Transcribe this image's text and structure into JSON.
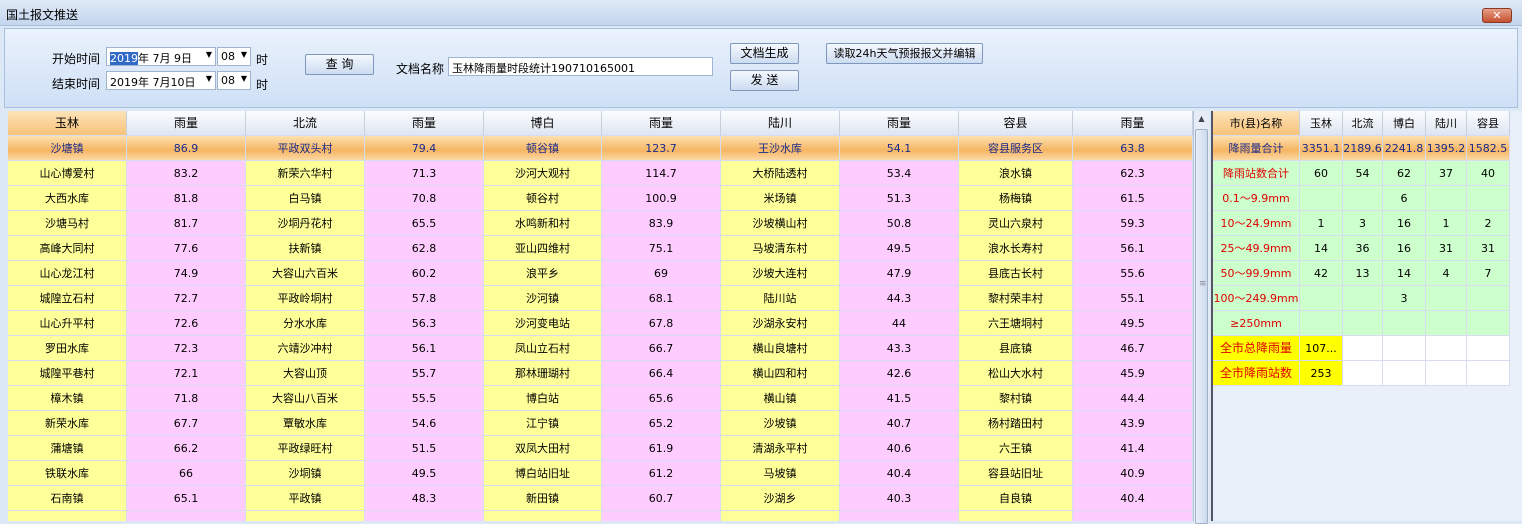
{
  "window": {
    "title": "国土报文推送",
    "close_icon": "close-icon"
  },
  "toolbar": {
    "start_label": "开始时间",
    "start_year_sel": "2019",
    "start_date_rest": "年 7月 9日",
    "start_hour": "08",
    "hour_unit": "时",
    "end_label": "结束时间",
    "end_date": "2019年 7月10日",
    "end_hour": "08",
    "query": "查 询",
    "doc_name_label": "文档名称",
    "doc_name_value": "玉林降雨量时段统计190710165001",
    "generate": "文档生成",
    "send": "发 送",
    "read_forecast": "读取24h天气预报报文并编辑"
  },
  "grid": {
    "headers": [
      "玉林",
      "雨量",
      "北流",
      "雨量",
      "博白",
      "雨量",
      "陆川",
      "雨量",
      "容县",
      "雨量"
    ],
    "rows": [
      [
        "沙塘镇",
        "86.9",
        "平政双头村",
        "79.4",
        "顿谷镇",
        "123.7",
        "王沙水库",
        "54.1",
        "容县服务区",
        "63.8"
      ],
      [
        "山心博爱村",
        "83.2",
        "新荣六华村",
        "71.3",
        "沙河大观村",
        "114.7",
        "大桥陆透村",
        "53.4",
        "浪水镇",
        "62.3"
      ],
      [
        "大西水库",
        "81.8",
        "白马镇",
        "70.8",
        "顿谷村",
        "100.9",
        "米场镇",
        "51.3",
        "杨梅镇",
        "61.5"
      ],
      [
        "沙塘马村",
        "81.7",
        "沙垌丹花村",
        "65.5",
        "水鸣新和村",
        "83.9",
        "沙坡横山村",
        "50.8",
        "灵山六泉村",
        "59.3"
      ],
      [
        "高峰大同村",
        "77.6",
        "扶新镇",
        "62.8",
        "亚山四维村",
        "75.1",
        "马坡清东村",
        "49.5",
        "浪水长寿村",
        "56.1"
      ],
      [
        "山心龙江村",
        "74.9",
        "大容山六百米",
        "60.2",
        "浪平乡",
        "69",
        "沙坡大连村",
        "47.9",
        "县底古长村",
        "55.6"
      ],
      [
        "城隍立石村",
        "72.7",
        "平政岭垌村",
        "57.8",
        "沙河镇",
        "68.1",
        "陆川站",
        "44.3",
        "黎村荣丰村",
        "55.1"
      ],
      [
        "山心升平村",
        "72.6",
        "分水水库",
        "56.3",
        "沙河变电站",
        "67.8",
        "沙湖永安村",
        "44",
        "六王塘垌村",
        "49.5"
      ],
      [
        "罗田水库",
        "72.3",
        "六靖沙冲村",
        "56.1",
        "凤山立石村",
        "66.7",
        "横山良塘村",
        "43.3",
        "县底镇",
        "46.7"
      ],
      [
        "城隍平巷村",
        "72.1",
        "大容山顶",
        "55.7",
        "那林珊瑚村",
        "66.4",
        "横山四和村",
        "42.6",
        "松山大水村",
        "45.9"
      ],
      [
        "樟木镇",
        "71.8",
        "大容山八百米",
        "55.5",
        "博白站",
        "65.6",
        "横山镇",
        "41.5",
        "黎村镇",
        "44.4"
      ],
      [
        "新荣水库",
        "67.7",
        "覃敏水库",
        "54.6",
        "江宁镇",
        "65.2",
        "沙坡镇",
        "40.7",
        "杨村踏田村",
        "43.9"
      ],
      [
        "蒲塘镇",
        "66.2",
        "平政绿旺村",
        "51.5",
        "双凤大田村",
        "61.9",
        "清湖永平村",
        "40.6",
        "六王镇",
        "41.4"
      ],
      [
        "铁联水库",
        "66",
        "沙垌镇",
        "49.5",
        "博白站旧址",
        "61.2",
        "马坡镇",
        "40.4",
        "容县站旧址",
        "40.9"
      ],
      [
        "石南镇",
        "65.1",
        "平政镇",
        "48.3",
        "新田镇",
        "60.7",
        "沙湖乡",
        "40.3",
        "自良镇",
        "40.4"
      ],
      [
        "",
        "",
        "",
        "",
        "",
        "",
        "",
        "",
        "",
        ""
      ]
    ]
  },
  "summary": {
    "headers": [
      "市(县)名称",
      "玉林",
      "北流",
      "博白",
      "陆川",
      "容县"
    ],
    "total_row": [
      "降雨量合计",
      "3351.1",
      "2189.6",
      "2241.8",
      "1395.2",
      "1582.5"
    ],
    "rows": [
      [
        "降雨站数合计",
        "60",
        "54",
        "62",
        "37",
        "40"
      ],
      [
        "0.1～9.9mm",
        "",
        "",
        "6",
        "",
        ""
      ],
      [
        "10～24.9mm",
        "1",
        "3",
        "16",
        "1",
        "2"
      ],
      [
        "25～49.9mm",
        "14",
        "36",
        "16",
        "31",
        "31"
      ],
      [
        "50～99.9mm",
        "42",
        "13",
        "14",
        "4",
        "7"
      ],
      [
        "100～249.9mm",
        "",
        "",
        "3",
        "",
        ""
      ],
      [
        "≥250mm",
        "",
        "",
        "",
        "",
        ""
      ]
    ],
    "city_rows": [
      [
        "全市总降雨量",
        "107..."
      ],
      [
        "全市降雨站数",
        "253"
      ]
    ]
  },
  "colors": {
    "name_cell": "#ffff99",
    "rain_cell": "#ffccff",
    "summary_cell": "#ccffcc",
    "city_cell": "#ffff00",
    "red_text": "#e00000"
  }
}
